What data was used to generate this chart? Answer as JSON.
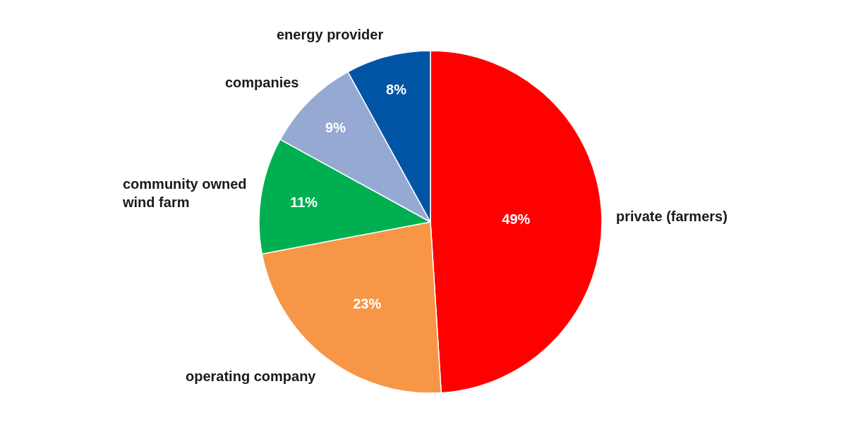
{
  "chart_data": {
    "type": "pie",
    "categories": [
      "private (farmers)",
      "operating company",
      "community owned\nwind farm",
      "companies",
      "energy provider"
    ],
    "values": [
      49,
      23,
      11,
      9,
      8
    ],
    "colors": [
      "#ff0000",
      "#f79646",
      "#00b050",
      "#95a9d3",
      "#0055a5"
    ],
    "value_labels": [
      "49%",
      "23%",
      "11%",
      "9%",
      "8%"
    ],
    "legend": false
  }
}
